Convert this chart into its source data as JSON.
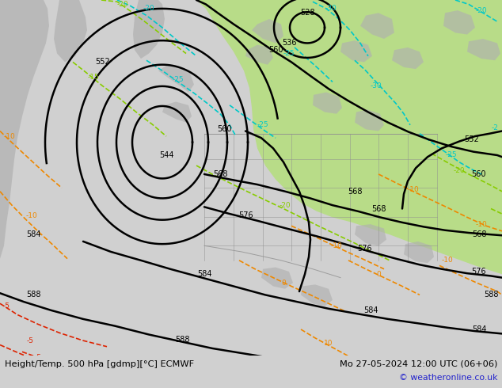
{
  "title_bottom_left": "Height/Temp. 500 hPa [gdmp][°C] ECMWF",
  "title_bottom_right": "Mo 27-05-2024 12:00 UTC (06+06)",
  "copyright": "© weatheronline.co.uk",
  "bg_color": "#d0d0d0",
  "ocean_color": "#d8d8d8",
  "green_fill_color": "#b8dc88",
  "gray_land_color": "#b0b0b0",
  "fig_width": 6.34,
  "fig_height": 4.9,
  "dpi": 100
}
